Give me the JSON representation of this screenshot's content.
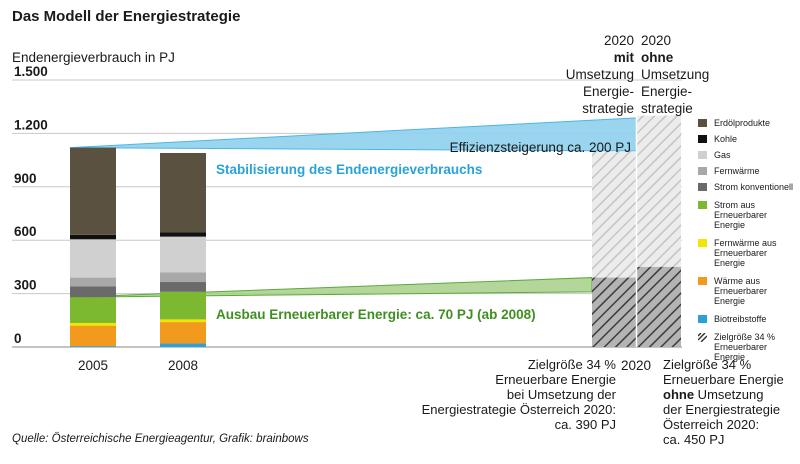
{
  "header": {
    "title": "Das Modell der Energiestrategie",
    "y_axis_label": "Endenergieverbrauch in PJ",
    "source": "Quelle: Österreichische Energieagentur, Grafik: brainbows"
  },
  "columns": {
    "mit": {
      "year": "2020",
      "emph": "mit",
      "l1": "Umsetzung",
      "l2": "Energie-",
      "l3": "strategie"
    },
    "ohne": {
      "year": "2020",
      "emph": "ohne",
      "l1": "Umsetzung",
      "l2": "Energie-",
      "l3": "strategie"
    }
  },
  "notes": {
    "mit": {
      "l1": "Zielgröße 34 %",
      "l2": "Erneuerbare Energie",
      "l3": "bei Umsetzung der",
      "l4": "Energiestrategie Österreich 2020:",
      "l5": "ca. 390 PJ"
    },
    "ohne": {
      "l1": "Zielgröße 34 %",
      "l2": "Erneuerbare Energie",
      "l3_bold": "ohne",
      "l3_rest": " Umsetzung",
      "l4": "der Energiestrategie",
      "l5": "Österreich 2020:",
      "l6": "ca. 450 PJ"
    }
  },
  "colors": {
    "erdoel": "#5a5140",
    "kohle": "#111111",
    "gas": "#d0d0d0",
    "fernwaerme": "#a8a8a8",
    "strom_konv": "#6a6a6a",
    "strom_ee": "#7cb930",
    "fernwaerme_ee": "#f2e600",
    "waerme_ee": "#f29a1e",
    "bio": "#2ea0d8",
    "band_blue": "#8fd0ee",
    "band_green": "#a8cf8a",
    "blue_text": "#29a3d6",
    "green_text": "#3f8f22"
  },
  "chart_data": {
    "type": "bar",
    "stacked": true,
    "ylim": [
      0,
      1500
    ],
    "yticks": [
      0,
      300,
      600,
      900,
      1200,
      1500
    ],
    "ytick_labels": [
      "0",
      "300",
      "600",
      "900",
      "1.200",
      "1.500"
    ],
    "categories": [
      "2005",
      "2008"
    ],
    "category_2020_label": "2020",
    "series": [
      {
        "key": "bio",
        "name": "Biotreibstoffe",
        "values": [
          5,
          20
        ]
      },
      {
        "key": "waerme_ee",
        "name": "Wärme aus Erneuerbarer Energie",
        "values": [
          115,
          120
        ]
      },
      {
        "key": "fernwaerme_ee",
        "name": "Fernwärme aus Erneuerbarer Energie",
        "values": [
          15,
          15
        ]
      },
      {
        "key": "strom_ee",
        "name": "Strom aus Erneuerbarer Energie",
        "values": [
          145,
          155
        ]
      },
      {
        "key": "strom_konv",
        "name": "Strom konventionell",
        "values": [
          60,
          55
        ]
      },
      {
        "key": "fernwaerme",
        "name": "Fernwärme",
        "values": [
          50,
          55
        ]
      },
      {
        "key": "gas",
        "name": "Gas",
        "values": [
          215,
          200
        ]
      },
      {
        "key": "kohle",
        "name": "Kohle",
        "values": [
          25,
          25
        ]
      },
      {
        "key": "erdoel",
        "name": "Erdölprodukte",
        "values": [
          490,
          445
        ]
      }
    ],
    "targets_2020": [
      {
        "scenario": "mit",
        "total": 1100,
        "renewable": 390
      },
      {
        "scenario": "ohne",
        "total": 1300,
        "renewable": 450
      }
    ],
    "legend_extra": "Zielgröße 34 % Erneuerbarer Energie",
    "annotations": {
      "effizienz": "Effizienzsteigerung ca. 200 PJ",
      "stabilisierung": "Stabilisierung des Endenergieverbrauchs",
      "ausbau": "Ausbau Erneuerbarer Energie: ca. 70 PJ (ab 2008)"
    }
  }
}
